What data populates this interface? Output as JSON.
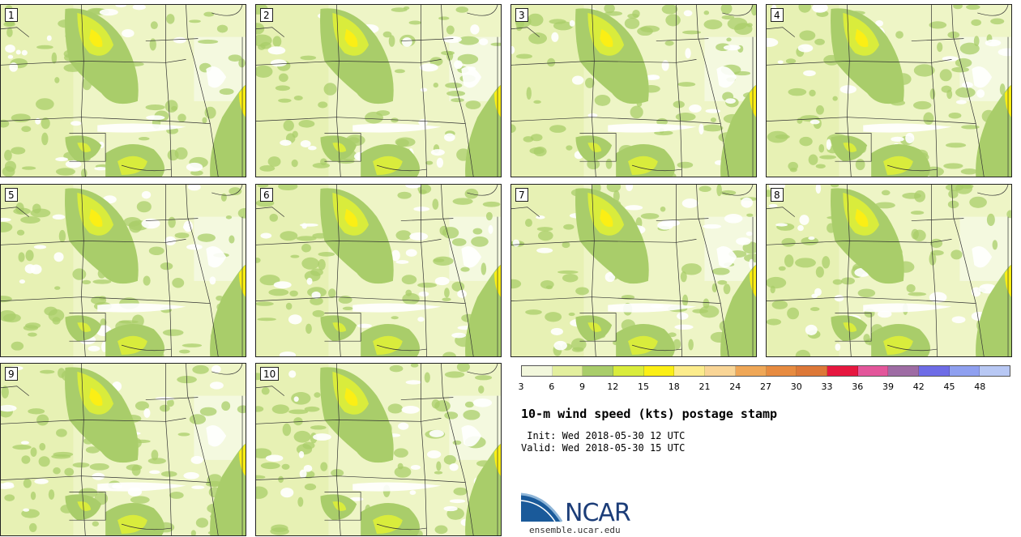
{
  "members": [
    "1",
    "2",
    "3",
    "4",
    "5",
    "6",
    "7",
    "8",
    "9",
    "10"
  ],
  "colorbar": {
    "ticks": [
      "3",
      "6",
      "9",
      "12",
      "15",
      "18",
      "21",
      "24",
      "27",
      "30",
      "33",
      "36",
      "39",
      "42",
      "45",
      "48"
    ],
    "colors": [
      "#f2f7dc",
      "#e3ef9e",
      "#a9cd6a",
      "#d9ec3c",
      "#fbef15",
      "#fcec8c",
      "#f9d596",
      "#efa757",
      "#e78b40",
      "#dd7838",
      "#e6173f",
      "#e3569b",
      "#9e6ca4",
      "#6e6ce6",
      "#8fa0f0",
      "#b8c8f4"
    ]
  },
  "title": "10-m wind speed (kts) postage stamp",
  "init": " Init: Wed 2018-05-30 12 UTC",
  "valid": "Valid: Wed 2018-05-30 15 UTC",
  "logo": {
    "name": "NCAR",
    "url": "ensemble.ucar.edu"
  }
}
